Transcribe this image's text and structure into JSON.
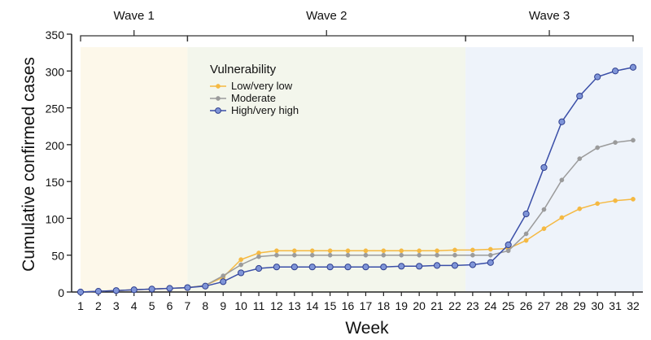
{
  "chart_data": {
    "type": "line",
    "title": "",
    "xlabel": "Week",
    "ylabel": "Cumulative confirmed cases",
    "xlim": [
      1,
      32
    ],
    "ylim": [
      0,
      350
    ],
    "y_ticks": [
      0,
      50,
      100,
      150,
      200,
      250,
      300,
      350
    ],
    "x": [
      1,
      2,
      3,
      4,
      5,
      6,
      7,
      8,
      9,
      10,
      11,
      12,
      13,
      14,
      15,
      16,
      17,
      18,
      19,
      20,
      21,
      22,
      23,
      24,
      25,
      26,
      27,
      28,
      29,
      30,
      31,
      32
    ],
    "waves": [
      {
        "label": "Wave 1",
        "start": 1,
        "end": 7,
        "color": "#fdf8ea"
      },
      {
        "label": "Wave 2",
        "start": 7,
        "end": 22.6,
        "color": "#f3f6ec"
      },
      {
        "label": "Wave 3",
        "start": 22.6,
        "end": 32,
        "color": "#eef3fa"
      }
    ],
    "legend_title": "Vulnerability",
    "legend_position": "top-left inside plot",
    "series": [
      {
        "name": "Low/very low",
        "color": "#f5b942",
        "values": [
          0,
          1,
          2,
          3,
          4,
          5,
          6,
          9,
          20,
          44,
          53,
          56,
          56,
          56,
          56,
          56,
          56,
          56,
          56,
          56,
          56,
          57,
          57,
          58,
          59,
          70,
          86,
          101,
          113,
          120,
          124,
          126
        ]
      },
      {
        "name": "Moderate",
        "color": "#9b9b9b",
        "values": [
          0,
          1,
          2,
          3,
          4,
          5,
          6,
          9,
          22,
          37,
          48,
          50,
          50,
          50,
          50,
          50,
          50,
          50,
          50,
          50,
          50,
          50,
          50,
          50,
          56,
          79,
          112,
          152,
          181,
          196,
          203,
          206
        ]
      },
      {
        "name": "High/very high",
        "color": "#3b4fa8",
        "values": [
          0,
          1,
          2,
          3,
          4,
          5,
          6,
          8,
          14,
          26,
          32,
          34,
          34,
          34,
          34,
          34,
          34,
          34,
          35,
          35,
          36,
          36,
          37,
          40,
          64,
          106,
          169,
          231,
          266,
          292,
          300,
          305
        ]
      }
    ]
  }
}
